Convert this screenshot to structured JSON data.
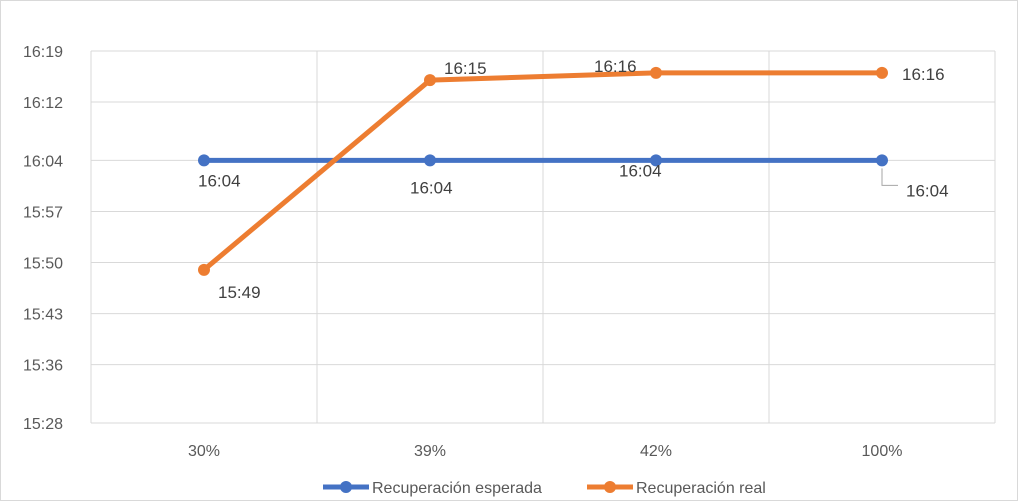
{
  "chart_data": {
    "type": "line",
    "title": "",
    "xlabel": "",
    "ylabel": "",
    "categories": [
      "30%",
      "39%",
      "42%",
      "100%"
    ],
    "y_ticks": [
      "15:28",
      "15:36",
      "15:43",
      "15:50",
      "15:57",
      "16:04",
      "16:12",
      "16:19"
    ],
    "ylim": [
      "15:28",
      "16:19"
    ],
    "grid": true,
    "legend_position": "bottom",
    "series": [
      {
        "name": "Recuperación esperada",
        "color": "#4472C4",
        "values": [
          "16:04",
          "16:04",
          "16:04",
          "16:04"
        ],
        "labels": [
          "16:04",
          "16:04",
          "16:04",
          "16:04"
        ]
      },
      {
        "name": "Recuperación real",
        "color": "#ED7D31",
        "values": [
          "15:49",
          "16:15",
          "16:16",
          "16:16"
        ],
        "labels": [
          "15:49",
          "16:15",
          "16:16",
          "16:16"
        ]
      }
    ]
  }
}
